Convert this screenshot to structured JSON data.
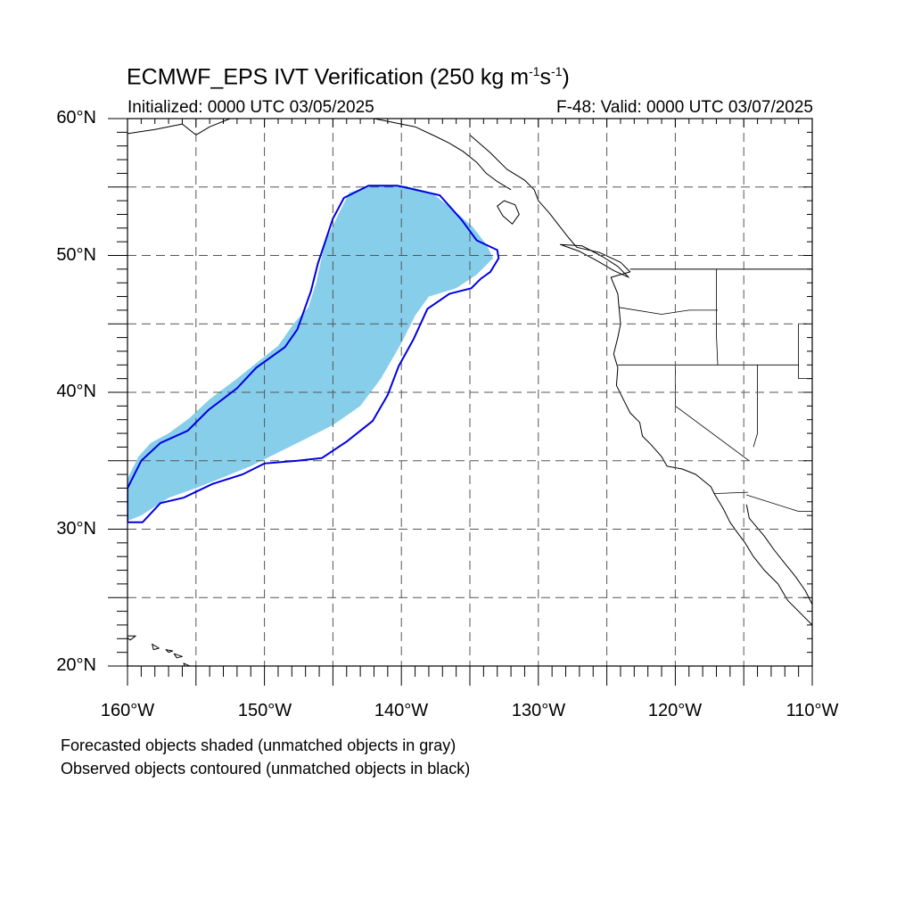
{
  "title": {
    "prefix": "ECMWF_EPS IVT Verification (250 kg m",
    "exp1": "-1",
    "mid": "s",
    "exp2": "-1",
    "suffix": ")"
  },
  "subtitle_left": "Initialized: 0000 UTC 03/05/2025",
  "subtitle_right": "F-48: Valid: 0000 UTC 03/07/2025",
  "lat_labels": [
    "60°N",
    "50°N",
    "40°N",
    "30°N",
    "20°N"
  ],
  "lon_labels": [
    "160°W",
    "150°W",
    "140°W",
    "130°W",
    "120°W",
    "110°W"
  ],
  "notes": [
    "Forecasted objects shaded (unmatched objects in gray)",
    "Observed objects contoured (unmatched objects in black)"
  ],
  "map": {
    "lon_range": [
      -160,
      -110
    ],
    "lat_range": [
      20,
      60
    ],
    "grid_step_deg": 5,
    "grid_style": "dashed",
    "projection": "cylindrical-equidistant"
  },
  "colors": {
    "forecast_fill": "#87CEEB",
    "observed_contour": "#0000E0",
    "coastline": "#000000",
    "grid": "#555555"
  },
  "forecast_object": {
    "matched": true,
    "polygon_lonlat": [
      [
        -160,
        30.6
      ],
      [
        -159,
        31.0
      ],
      [
        -157,
        32.3
      ],
      [
        -155,
        33.0
      ],
      [
        -153,
        33.8
      ],
      [
        -151,
        34.6
      ],
      [
        -149,
        35.6
      ],
      [
        -147,
        36.6
      ],
      [
        -145,
        37.6
      ],
      [
        -143,
        39.0
      ],
      [
        -141.5,
        41.0
      ],
      [
        -140,
        43.6
      ],
      [
        -139,
        45.6
      ],
      [
        -138,
        47.0
      ],
      [
        -136,
        47.6
      ],
      [
        -134.5,
        48.6
      ],
      [
        -133.3,
        49.8
      ],
      [
        -133.8,
        50.8
      ],
      [
        -134.8,
        52.1
      ],
      [
        -136.2,
        53.3
      ],
      [
        -137.8,
        54.6
      ],
      [
        -139.8,
        55.1
      ],
      [
        -142.2,
        55.1
      ],
      [
        -143.8,
        54.6
      ],
      [
        -144.7,
        52.8
      ],
      [
        -145.6,
        50.9
      ],
      [
        -146.2,
        48.1
      ],
      [
        -146.8,
        46.2
      ],
      [
        -147.8,
        45.1
      ],
      [
        -149,
        43.4
      ],
      [
        -150.4,
        42.3
      ],
      [
        -152,
        41.0
      ],
      [
        -154,
        39.5
      ],
      [
        -155.5,
        38.1
      ],
      [
        -157,
        37.0
      ],
      [
        -158.3,
        36.3
      ],
      [
        -159.2,
        35.3
      ],
      [
        -160,
        33.7
      ]
    ]
  },
  "observed_object": {
    "matched": true,
    "polygon_lonlat": [
      [
        -160,
        30.5
      ],
      [
        -158.9,
        30.5
      ],
      [
        -157.6,
        31.9
      ],
      [
        -155.9,
        32.3
      ],
      [
        -153.8,
        33.3
      ],
      [
        -151.6,
        34.0
      ],
      [
        -150,
        34.8
      ],
      [
        -147.6,
        35.0
      ],
      [
        -145.8,
        35.2
      ],
      [
        -144,
        36.4
      ],
      [
        -142.1,
        37.9
      ],
      [
        -141,
        39.8
      ],
      [
        -140.2,
        41.9
      ],
      [
        -139.1,
        43.9
      ],
      [
        -138.1,
        46.1
      ],
      [
        -136.5,
        47.2
      ],
      [
        -134.9,
        47.6
      ],
      [
        -134.2,
        48.3
      ],
      [
        -133.5,
        48.8
      ],
      [
        -132.9,
        49.8
      ],
      [
        -133,
        50.4
      ],
      [
        -134.5,
        51.1
      ],
      [
        -135.6,
        52.6
      ],
      [
        -137.2,
        54.4
      ],
      [
        -140.3,
        55.1
      ],
      [
        -142.4,
        55.1
      ],
      [
        -144.2,
        54.2
      ],
      [
        -145,
        52.7
      ],
      [
        -145.3,
        51.8
      ],
      [
        -146.1,
        49.4
      ],
      [
        -146.6,
        47.4
      ],
      [
        -147.6,
        44.6
      ],
      [
        -148.5,
        43.3
      ],
      [
        -150.6,
        41.8
      ],
      [
        -152,
        40.3
      ],
      [
        -154.1,
        38.7
      ],
      [
        -155.6,
        37.2
      ],
      [
        -157.6,
        36.3
      ],
      [
        -159,
        35.0
      ],
      [
        -160,
        33.0
      ]
    ]
  },
  "boundaries": {
    "coastline_lonlat": [
      [
        -135,
        58.8
      ],
      [
        -133.5,
        57.5
      ],
      [
        -132.3,
        56.3
      ],
      [
        -131,
        55.5
      ],
      [
        -130.3,
        54.8
      ],
      [
        -130,
        54
      ],
      [
        -129.2,
        53.1
      ],
      [
        -128.5,
        52.2
      ],
      [
        -127.8,
        51.3
      ],
      [
        -127.2,
        50.6
      ],
      [
        -125.5,
        50.2
      ],
      [
        -124,
        49.5
      ],
      [
        -123.3,
        48.8
      ],
      [
        -124.7,
        48.4
      ],
      [
        -124.2,
        47.2
      ],
      [
        -124.1,
        46.1
      ],
      [
        -124,
        45
      ],
      [
        -124.2,
        44
      ],
      [
        -124.5,
        42.8
      ],
      [
        -124.2,
        41.8
      ],
      [
        -124.3,
        40.5
      ],
      [
        -123.8,
        39.5
      ],
      [
        -123.3,
        38.5
      ],
      [
        -122.6,
        37.8
      ],
      [
        -122.4,
        36.8
      ],
      [
        -121.8,
        36.2
      ],
      [
        -121,
        35.3
      ],
      [
        -120.6,
        34.6
      ],
      [
        -119.5,
        34.4
      ],
      [
        -118.5,
        34
      ],
      [
        -117.4,
        33.1
      ],
      [
        -117.1,
        32.5
      ],
      [
        -116.5,
        31.5
      ],
      [
        -116,
        30.5
      ],
      [
        -115.5,
        29.8
      ],
      [
        -114.9,
        29
      ],
      [
        -114.3,
        28
      ],
      [
        -113.5,
        27
      ],
      [
        -112.5,
        26
      ],
      [
        -111.8,
        24.8
      ],
      [
        -110.5,
        23.5
      ],
      [
        -110,
        23
      ]
    ],
    "gulf_coast_lonlat": [
      [
        -114.8,
        31.8
      ],
      [
        -114.6,
        30.8
      ],
      [
        -113.5,
        29.5
      ],
      [
        -112.8,
        28.5
      ],
      [
        -112,
        27.5
      ],
      [
        -111.2,
        26.5
      ],
      [
        -110.5,
        25.5
      ],
      [
        -110,
        24.5
      ]
    ],
    "alaska_coast_lonlat": [
      [
        -160,
        58.9
      ],
      [
        -158,
        59.2
      ],
      [
        -156,
        59.6
      ],
      [
        -155,
        58.8
      ],
      [
        -154,
        59.4
      ],
      [
        -152.5,
        60
      ]
    ],
    "se_alaska_coast_lonlat": [
      [
        -142,
        60
      ],
      [
        -140.5,
        59.7
      ],
      [
        -139,
        59.4
      ],
      [
        -137.5,
        58.7
      ],
      [
        -136.5,
        58.2
      ],
      [
        -135.5,
        57.6
      ],
      [
        -134.5,
        56.8
      ],
      [
        -133.8,
        56
      ],
      [
        -133,
        55.4
      ],
      [
        -132,
        54.8
      ]
    ],
    "haida_gwaii_lonlat": [
      [
        -132.5,
        54
      ],
      [
        -131.7,
        53.7
      ],
      [
        -131.4,
        53
      ],
      [
        -131.9,
        52.3
      ],
      [
        -132.6,
        52.9
      ],
      [
        -133,
        53.6
      ],
      [
        -132.5,
        54
      ]
    ],
    "vancouver_island_lonlat": [
      [
        -128.4,
        50.8
      ],
      [
        -127,
        50.3
      ],
      [
        -125.7,
        49.6
      ],
      [
        -124.5,
        48.9
      ],
      [
        -123.4,
        48.4
      ],
      [
        -124.2,
        49.2
      ],
      [
        -125.3,
        49.9
      ],
      [
        -126.8,
        50.7
      ],
      [
        -128.4,
        50.8
      ]
    ],
    "canada_us_border_lonlat": [
      [
        -123.3,
        49
      ],
      [
        -110,
        49
      ]
    ],
    "state_lines_lonlat": [
      [
        [
          -117,
          49
        ],
        [
          -117,
          46
        ]
      ],
      [
        [
          -124.1,
          46.2
        ],
        [
          -121,
          45.7
        ],
        [
          -119,
          46
        ],
        [
          -116.9,
          46
        ]
      ],
      [
        [
          -124.2,
          42
        ],
        [
          -111,
          42
        ]
      ],
      [
        [
          -120,
          42
        ],
        [
          -120,
          39
        ],
        [
          -114.6,
          35
        ]
      ],
      [
        [
          -117,
          46
        ],
        [
          -117,
          44.2
        ],
        [
          -116.9,
          42
        ]
      ],
      [
        [
          -114,
          42
        ],
        [
          -114,
          37
        ],
        [
          -114.3,
          36
        ]
      ],
      [
        [
          -111,
          45
        ],
        [
          -111,
          41
        ],
        [
          -110,
          41
        ]
      ],
      [
        [
          -117.2,
          32.6
        ],
        [
          -114.7,
          32.7
        ]
      ],
      [
        [
          -114.8,
          32.5
        ],
        [
          -111,
          31.3
        ],
        [
          -110,
          31.3
        ]
      ]
    ],
    "hawaii_lonlat": [
      [
        [
          -160.2,
          22.2
        ],
        [
          -159.4,
          22.2
        ],
        [
          -159.8,
          21.9
        ],
        [
          -160.2,
          22.2
        ]
      ],
      [
        [
          -158.2,
          21.6
        ],
        [
          -157.7,
          21.3
        ],
        [
          -158.1,
          21.2
        ],
        [
          -158.2,
          21.6
        ]
      ],
      [
        [
          -157.2,
          21.2
        ],
        [
          -156.7,
          21.1
        ],
        [
          -157.0,
          21.0
        ],
        [
          -157.2,
          21.2
        ]
      ],
      [
        [
          -156.6,
          20.9
        ],
        [
          -156.0,
          20.7
        ],
        [
          -156.4,
          20.6
        ],
        [
          -156.6,
          20.9
        ]
      ],
      [
        [
          -155.9,
          20.2
        ],
        [
          -155.0,
          19.8
        ],
        [
          -155.6,
          19.4
        ],
        [
          -155.9,
          20.2
        ]
      ]
    ]
  }
}
